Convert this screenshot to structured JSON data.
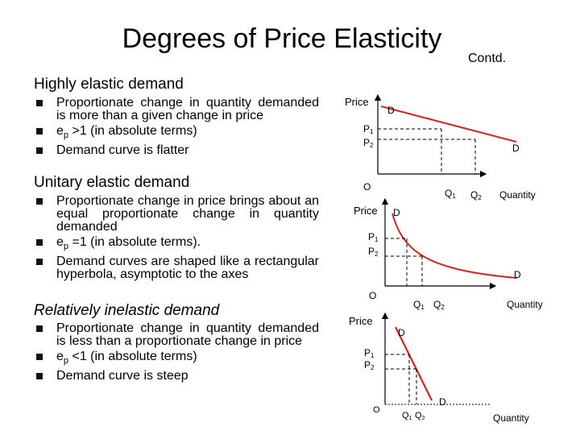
{
  "slide": {
    "title": "Degrees of Price Elasticity",
    "contd": "Contd."
  },
  "sections": [
    {
      "heading": "Highly elastic demand",
      "bullets": [
        "Proportionate change in quantity demanded is more than a given change in price",
        "ep >1 (in absolute terms)",
        "Demand curve is flatter"
      ]
    },
    {
      "heading": "Unitary elastic demand",
      "bullets": [
        "Proportionate change in price brings about an equal proportionate change in quantity demanded",
        "ep =1 (in absolute terms).",
        "Demand curves are shaped like a rectangular hyperbola, asymptotic to the axes"
      ]
    },
    {
      "heading": "Relatively inelastic demand",
      "bullets": [
        "Proportionate change in quantity demanded is less than a proportionate change in price",
        "ep <1 (in absolute terms)",
        "Demand curve is steep"
      ]
    }
  ],
  "diagrams": [
    {
      "y_label": "Price",
      "x_label": "Quantity",
      "origin": "O",
      "curve_top": "D",
      "curve_end": "D",
      "p1": "P",
      "p1_sub": "1",
      "p2": "P",
      "p2_sub": "2",
      "q1": "Q",
      "q1_sub": "1",
      "q2": "Q",
      "q2_sub": "2"
    },
    {
      "y_label": "Price",
      "x_label": "Quantity",
      "origin": "O",
      "curve_top": "D",
      "curve_end": "D",
      "p1": "P",
      "p1_sub": "1",
      "p2": "P",
      "p2_sub": "2",
      "q1": "Q",
      "q1_sub": "1",
      "q2": "Q",
      "q2_sub": "2"
    },
    {
      "y_label": "Price",
      "x_label": "Quantity",
      "origin": "O",
      "curve_top": "D",
      "curve_end": "D",
      "p1": "P",
      "p1_sub": "1",
      "p2": "P",
      "p2_sub": "2",
      "q1": "Q",
      "q1_sub": "1",
      "q2": "Q",
      "q2_sub": "2"
    }
  ],
  "colors": {
    "curve": "#e02020",
    "text": "#000000"
  }
}
